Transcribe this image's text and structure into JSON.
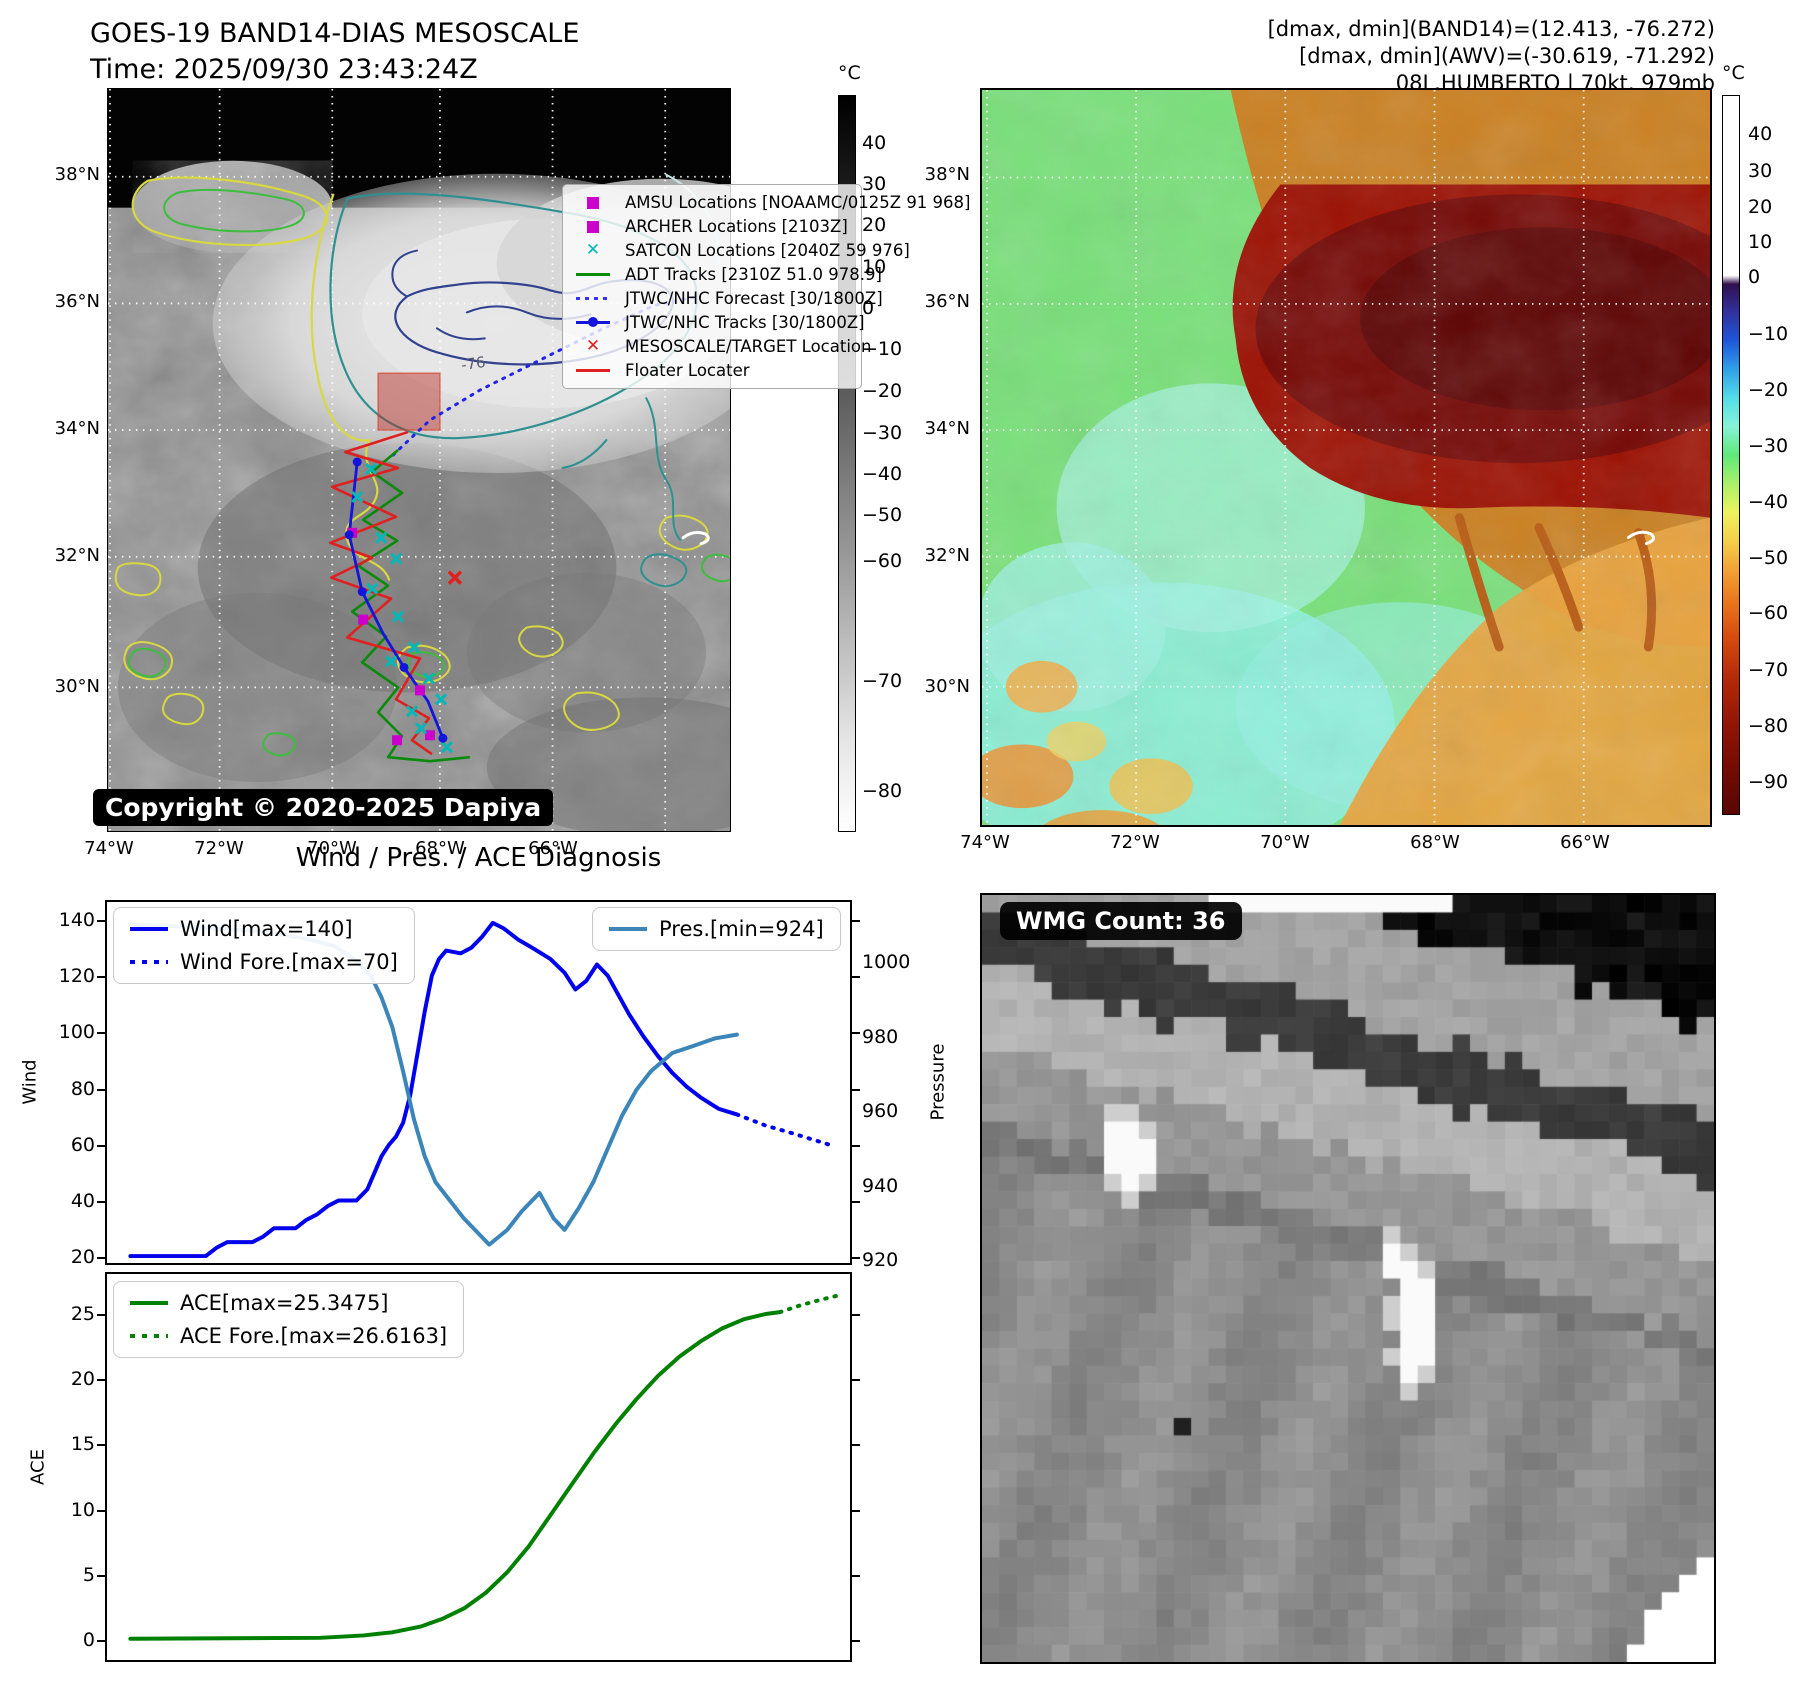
{
  "band14": {
    "title": "GOES-19 BAND14-DIAS MESOSCALE",
    "time_label": "Time: 2025/09/30 23:43:24Z",
    "copyright": "Copyright © 2020-2025 Dapiya",
    "contour_label": "-76",
    "colorbar": {
      "unit": "°C",
      "ticks": [
        40,
        30,
        20,
        10,
        0,
        -10,
        -20,
        -30,
        -40,
        -50,
        -60,
        -70,
        -80
      ]
    },
    "lat_ticks": [
      "38°N",
      "36°N",
      "34°N",
      "32°N",
      "30°N"
    ],
    "lon_ticks": [
      "74°W",
      "72°W",
      "70°W",
      "68°W",
      "66°W"
    ],
    "legend": [
      {
        "label": "AMSU Locations [NOAAMC/0125Z 91 968]",
        "marker": "square",
        "color": "#cc00cc"
      },
      {
        "label": "ARCHER Locations [2103Z]",
        "marker": "square",
        "color": "#cc00cc"
      },
      {
        "label": "SATCON Locations [2040Z 59 976]",
        "marker": "x",
        "color": "#00b8b8"
      },
      {
        "label": "ADT Tracks [2310Z 51.0 978.9]",
        "marker": "line",
        "color": "#0a8a0a"
      },
      {
        "label": "JTWC/NHC Forecast [30/1800Z]",
        "marker": "dotted",
        "color": "#3333ff"
      },
      {
        "label": "JTWC/NHC Tracks [30/1800Z]",
        "marker": "line-dot",
        "color": "#1414dd"
      },
      {
        "label": "MESOSCALE/TARGET Location",
        "marker": "x",
        "color": "#e02020"
      },
      {
        "label": "Floater Locater",
        "marker": "line",
        "color": "#e02020"
      }
    ]
  },
  "awv": {
    "annotation_lines": [
      "[dmax, dmin](BAND14)=(12.413, -76.272)",
      "[dmax, dmin](AWV)=(-30.619, -71.292)",
      "08L.HUMBERTO | 70kt, 979mb"
    ],
    "colorbar": {
      "unit": "°C",
      "ticks": [
        40,
        30,
        20,
        10,
        0,
        -10,
        -20,
        -30,
        -40,
        -50,
        -60,
        -70,
        -80,
        -90
      ],
      "stops": [
        [
          0,
          "#ffffff"
        ],
        [
          0.25,
          "#ffffff"
        ],
        [
          0.262,
          "#30104f"
        ],
        [
          0.3,
          "#33309c"
        ],
        [
          0.34,
          "#1f55d8"
        ],
        [
          0.38,
          "#2f9fe8"
        ],
        [
          0.42,
          "#52dce8"
        ],
        [
          0.46,
          "#86f2d8"
        ],
        [
          0.5,
          "#5fe87a"
        ],
        [
          0.54,
          "#aaf06a"
        ],
        [
          0.58,
          "#eef25e"
        ],
        [
          0.62,
          "#f4cf4a"
        ],
        [
          0.66,
          "#f2a236"
        ],
        [
          0.7,
          "#ea7a1e"
        ],
        [
          0.75,
          "#d84e10"
        ],
        [
          0.81,
          "#b52a08"
        ],
        [
          0.88,
          "#8e1405"
        ],
        [
          0.95,
          "#6e0a04"
        ],
        [
          1,
          "#5a0703"
        ]
      ]
    },
    "lat_ticks": [
      "38°N",
      "36°N",
      "34°N",
      "32°N",
      "30°N"
    ],
    "lon_ticks": [
      "74°W",
      "72°W",
      "70°W",
      "68°W",
      "66°W"
    ]
  },
  "diagnosis": {
    "title": "Wind / Pres. / ACE Diagnosis"
  },
  "wmg": {
    "label": "WMG Count: 36"
  },
  "chart_data": [
    {
      "type": "heatmap",
      "id": "band14_map",
      "title": "GOES-19 BAND14-DIAS MESOSCALE",
      "time": "2025/09/30 23:43:24Z",
      "units": "°C",
      "value_range": [
        -80,
        40
      ],
      "lat_ticks": [
        "30°N",
        "32°N",
        "34°N",
        "36°N",
        "38°N"
      ],
      "lon_ticks": [
        "74°W",
        "72°W",
        "70°W",
        "68°W",
        "66°W"
      ],
      "annotations": [
        "-76"
      ]
    },
    {
      "type": "heatmap",
      "id": "awv_map",
      "units": "°C",
      "value_range": [
        -90,
        40
      ],
      "lat_ticks": [
        "30°N",
        "32°N",
        "34°N",
        "36°N",
        "38°N"
      ],
      "lon_ticks": [
        "74°W",
        "72°W",
        "70°W",
        "68°W",
        "66°W"
      ],
      "storm": "08L.HUMBERTO",
      "intensity": "70kt, 979mb"
    },
    {
      "type": "line",
      "id": "wind_pres",
      "title": "Wind / Pres. / ACE Diagnosis",
      "y_left": {
        "label": "Wind",
        "ticks": [
          140,
          120,
          100,
          80,
          60,
          40,
          20
        ],
        "range": [
          17.5,
          147.5
        ]
      },
      "y_right": {
        "label": "Pressure",
        "ticks": [
          1000,
          980,
          960,
          940,
          920
        ],
        "range": [
          919,
          1017
        ]
      },
      "x_range": [
        0,
        1
      ],
      "grid": false,
      "legend_position": [
        "upper left",
        "upper right"
      ],
      "series": [
        {
          "name": "Wind[max=140]",
          "color": "#0000ee",
          "style": "solid",
          "axis": "left",
          "points": [
            [
              0.015,
              20
            ],
            [
              0.12,
              20
            ],
            [
              0.135,
              23
            ],
            [
              0.15,
              25
            ],
            [
              0.185,
              25
            ],
            [
              0.2,
              27
            ],
            [
              0.215,
              30
            ],
            [
              0.245,
              30
            ],
            [
              0.26,
              33
            ],
            [
              0.275,
              35
            ],
            [
              0.29,
              38
            ],
            [
              0.305,
              40
            ],
            [
              0.33,
              40
            ],
            [
              0.345,
              44
            ],
            [
              0.355,
              50
            ],
            [
              0.365,
              56
            ],
            [
              0.375,
              60
            ],
            [
              0.385,
              63
            ],
            [
              0.395,
              68
            ],
            [
              0.405,
              78
            ],
            [
              0.415,
              93
            ],
            [
              0.425,
              108
            ],
            [
              0.435,
              121
            ],
            [
              0.445,
              127
            ],
            [
              0.455,
              130
            ],
            [
              0.475,
              129
            ],
            [
              0.49,
              131
            ],
            [
              0.505,
              135
            ],
            [
              0.52,
              140
            ],
            [
              0.535,
              138
            ],
            [
              0.555,
              134
            ],
            [
              0.575,
              131
            ],
            [
              0.6,
              127
            ],
            [
              0.62,
              122
            ],
            [
              0.635,
              116
            ],
            [
              0.65,
              119
            ],
            [
              0.665,
              125
            ],
            [
              0.68,
              121
            ],
            [
              0.695,
              114
            ],
            [
              0.71,
              107
            ],
            [
              0.73,
              99
            ],
            [
              0.75,
              92
            ],
            [
              0.77,
              86
            ],
            [
              0.79,
              81
            ],
            [
              0.81,
              77
            ],
            [
              0.835,
              73
            ],
            [
              0.86,
              71
            ]
          ]
        },
        {
          "name": "Wind Fore.[max=70]",
          "color": "#0000ee",
          "style": "dotted",
          "axis": "left",
          "points": [
            [
              0.86,
              71
            ],
            [
              0.9,
              67
            ],
            [
              0.94,
              64
            ],
            [
              0.99,
              60
            ]
          ]
        },
        {
          "name": "Pres.[min=924]",
          "color": "#3b85b8",
          "style": "solid",
          "axis": "right",
          "points": [
            [
              0.015,
              1011
            ],
            [
              0.12,
              1010
            ],
            [
              0.2,
              1009
            ],
            [
              0.26,
              1007
            ],
            [
              0.3,
              1005
            ],
            [
              0.33,
              1001
            ],
            [
              0.35,
              997
            ],
            [
              0.365,
              991
            ],
            [
              0.38,
              983
            ],
            [
              0.395,
              971
            ],
            [
              0.41,
              958
            ],
            [
              0.425,
              948
            ],
            [
              0.44,
              941
            ],
            [
              0.46,
              936
            ],
            [
              0.48,
              931
            ],
            [
              0.5,
              927
            ],
            [
              0.515,
              924
            ],
            [
              0.54,
              928
            ],
            [
              0.56,
              933
            ],
            [
              0.585,
              938
            ],
            [
              0.605,
              931
            ],
            [
              0.62,
              928
            ],
            [
              0.64,
              934
            ],
            [
              0.66,
              941
            ],
            [
              0.68,
              950
            ],
            [
              0.7,
              959
            ],
            [
              0.72,
              966
            ],
            [
              0.74,
              971
            ],
            [
              0.77,
              976
            ],
            [
              0.8,
              978
            ],
            [
              0.83,
              980
            ],
            [
              0.86,
              981
            ]
          ]
        }
      ]
    },
    {
      "type": "line",
      "id": "ace",
      "y_left": {
        "label": "ACE",
        "ticks": [
          25,
          20,
          15,
          10,
          5,
          0
        ],
        "range": [
          -1.6,
          28.3
        ]
      },
      "x_range": [
        0,
        1
      ],
      "grid": false,
      "legend_position": [
        "upper left"
      ],
      "series": [
        {
          "name": "ACE[max=25.3475]",
          "color": "#008000",
          "style": "solid",
          "axis": "left",
          "points": [
            [
              0.015,
              0.05
            ],
            [
              0.28,
              0.12
            ],
            [
              0.34,
              0.3
            ],
            [
              0.38,
              0.55
            ],
            [
              0.42,
              1
            ],
            [
              0.45,
              1.6
            ],
            [
              0.48,
              2.4
            ],
            [
              0.51,
              3.6
            ],
            [
              0.54,
              5.2
            ],
            [
              0.57,
              7.2
            ],
            [
              0.6,
              9.6
            ],
            [
              0.63,
              12
            ],
            [
              0.66,
              14.4
            ],
            [
              0.69,
              16.6
            ],
            [
              0.72,
              18.6
            ],
            [
              0.75,
              20.4
            ],
            [
              0.78,
              21.9
            ],
            [
              0.81,
              23.1
            ],
            [
              0.84,
              24.1
            ],
            [
              0.87,
              24.8
            ],
            [
              0.9,
              25.2
            ],
            [
              0.92,
              25.35
            ]
          ]
        },
        {
          "name": "ACE Fore.[max=26.6163]",
          "color": "#008000",
          "style": "dotted",
          "axis": "left",
          "points": [
            [
              0.92,
              25.35
            ],
            [
              0.95,
              25.9
            ],
            [
              0.98,
              26.35
            ],
            [
              1,
              26.62
            ]
          ]
        }
      ]
    },
    {
      "type": "heatmap",
      "id": "wmg_panel",
      "title": "WMG Count: 36"
    }
  ]
}
